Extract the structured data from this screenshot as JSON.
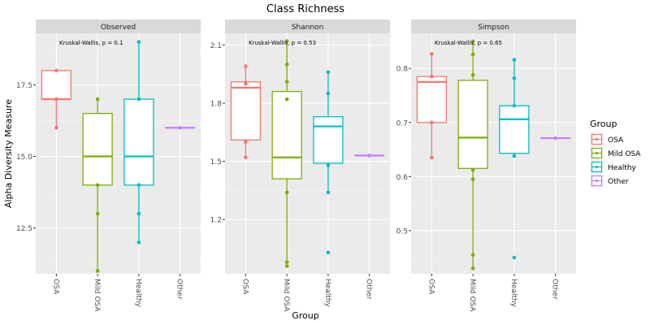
{
  "chart_data": {
    "type": "boxplot",
    "title": "Class Richness",
    "xlabel": "Group",
    "ylabel": "Alpha Diversity Measure",
    "categories": [
      "OSA",
      "Mild OSA",
      "Healthy",
      "Other"
    ],
    "legend": {
      "title": "Group",
      "placement": "right",
      "entries": [
        {
          "label": "OSA",
          "color": "#F8766D"
        },
        {
          "label": "Mild OSA",
          "color": "#7CAE00"
        },
        {
          "label": "Healthy",
          "color": "#00BFC4"
        },
        {
          "label": "Other",
          "color": "#C77CFF"
        }
      ]
    },
    "grid": true,
    "panels": [
      {
        "strip": "Observed",
        "annotation": "Kruskal-Wallis, p = 0.1",
        "ylim": [
          10.9,
          19.3
        ],
        "yticks": [
          12.5,
          15.0,
          17.5
        ],
        "ytick_labels": [
          "12.5",
          "15.0",
          "17.5"
        ],
        "boxes": [
          {
            "group": "OSA",
            "q1": 17.0,
            "median": 17.0,
            "q3": 18.0,
            "whisker_low": 16.0,
            "whisker_high": 18.0,
            "points": [
              16,
              17,
              17,
              18
            ]
          },
          {
            "group": "Mild OSA",
            "q1": 14.0,
            "median": 15.0,
            "q3": 16.5,
            "whisker_low": 11.0,
            "whisker_high": 17.0,
            "points": [
              11,
              13,
              14,
              17
            ]
          },
          {
            "group": "Healthy",
            "q1": 14.0,
            "median": 15.0,
            "q3": 17.0,
            "whisker_low": 12.0,
            "whisker_high": 19.0,
            "points": [
              12,
              13,
              14,
              17,
              19
            ]
          },
          {
            "group": "Other",
            "q1": 16.0,
            "median": 16.0,
            "q3": 16.0,
            "whisker_low": 16.0,
            "whisker_high": 16.0,
            "points": [
              16
            ]
          }
        ]
      },
      {
        "strip": "Shannon",
        "annotation": "Kruskal-Wallis, p = 0.53",
        "ylim": [
          0.92,
          2.16
        ],
        "yticks": [
          1.2,
          1.5,
          1.8,
          2.1
        ],
        "ytick_labels": [
          "1.2",
          "1.5",
          "1.8",
          "2.1"
        ],
        "boxes": [
          {
            "group": "OSA",
            "q1": 1.61,
            "median": 1.88,
            "q3": 1.91,
            "whisker_low": 1.52,
            "whisker_high": 1.99,
            "points": [
              1.52,
              1.6,
              1.9,
              1.99
            ]
          },
          {
            "group": "Mild OSA",
            "q1": 1.41,
            "median": 1.52,
            "q3": 1.86,
            "whisker_low": 0.96,
            "whisker_high": 2.12,
            "points": [
              0.96,
              0.98,
              1.34,
              1.82,
              1.91,
              2.0,
              2.12
            ]
          },
          {
            "group": "Healthy",
            "q1": 1.49,
            "median": 1.68,
            "q3": 1.73,
            "whisker_low": 1.34,
            "whisker_high": 1.96,
            "points": [
              1.03,
              1.34,
              1.48,
              1.85,
              1.96
            ]
          },
          {
            "group": "Other",
            "q1": 1.53,
            "median": 1.53,
            "q3": 1.53,
            "whisker_low": 1.53,
            "whisker_high": 1.53,
            "points": [
              1.53
            ]
          }
        ]
      },
      {
        "strip": "Simpson",
        "annotation": "Kruskal-Wallis, p = 0.65",
        "ylim": [
          0.42,
          0.865
        ],
        "yticks": [
          0.5,
          0.6,
          0.7,
          0.8
        ],
        "ytick_labels": [
          "0.5",
          "0.6",
          "0.7",
          "0.8"
        ],
        "boxes": [
          {
            "group": "OSA",
            "q1": 0.7,
            "median": 0.775,
            "q3": 0.785,
            "whisker_low": 0.635,
            "whisker_high": 0.827,
            "points": [
              0.635,
              0.7,
              0.785,
              0.827
            ]
          },
          {
            "group": "Mild OSA",
            "q1": 0.615,
            "median": 0.672,
            "q3": 0.778,
            "whisker_low": 0.43,
            "whisker_high": 0.85,
            "points": [
              0.43,
              0.455,
              0.595,
              0.612,
              0.788,
              0.826,
              0.85
            ]
          },
          {
            "group": "Healthy",
            "q1": 0.643,
            "median": 0.706,
            "q3": 0.731,
            "whisker_low": 0.638,
            "whisker_high": 0.816,
            "points": [
              0.45,
              0.638,
              0.731,
              0.782,
              0.816
            ]
          },
          {
            "group": "Other",
            "q1": 0.671,
            "median": 0.671,
            "q3": 0.671,
            "whisker_low": 0.671,
            "whisker_high": 0.671,
            "points": [
              0.671
            ]
          }
        ]
      }
    ]
  }
}
